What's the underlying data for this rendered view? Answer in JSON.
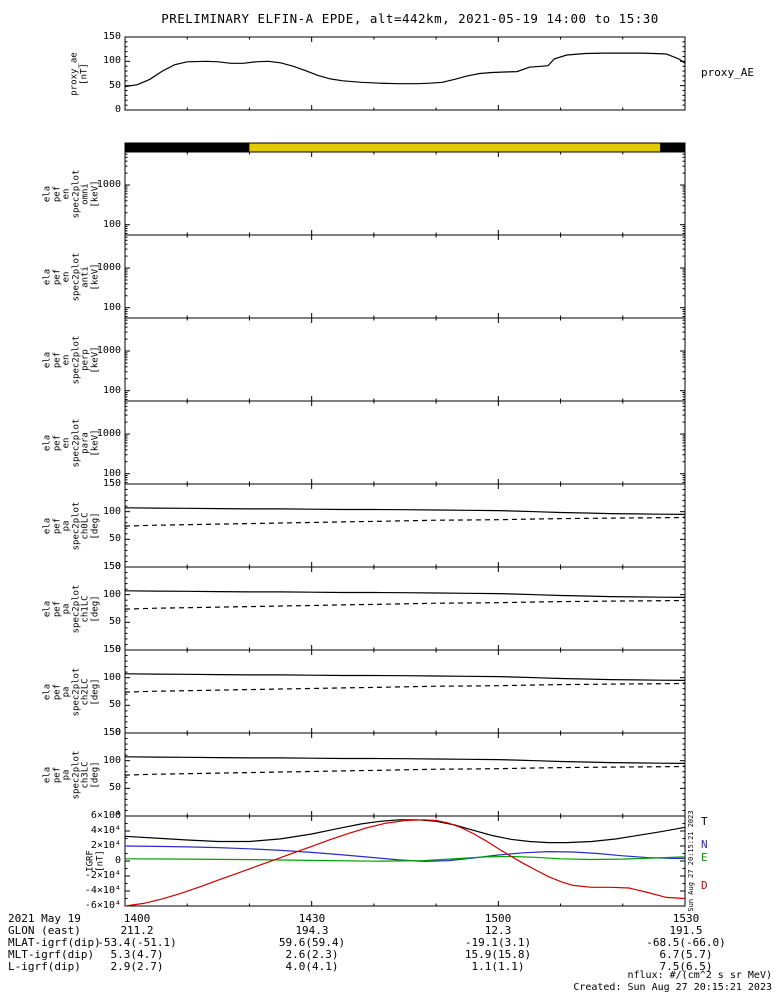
{
  "title": "PRELIMINARY ELFIN-A EPDE, alt=442km, 2021-05-19 14:00 to 15:30",
  "right_labels": {
    "proxy_ae_panel": "proxy_AE"
  },
  "igrf_trace_labels": [
    {
      "text": "T",
      "color": "#000000"
    },
    {
      "text": "N",
      "color": "#2b2bcc"
    },
    {
      "text": "E",
      "color": "#00a000"
    },
    {
      "text": "D",
      "color": "#cc0000"
    }
  ],
  "colors": {
    "line_black": "#000000",
    "bar_yellow": "#e3ca00",
    "igrf_T": "#000000",
    "igrf_N": "#2b2bcc",
    "igrf_E": "#00a000",
    "igrf_D": "#cc0000"
  },
  "time_axis": {
    "xlim_minutes": [
      0,
      90
    ],
    "major_ticks": [
      0,
      30,
      60,
      90
    ],
    "minor_step": 10,
    "tick_labels": [
      "1400",
      "1430",
      "1500",
      "1530"
    ]
  },
  "footer": {
    "rows": [
      {
        "label": "2021 May 19",
        "values": [
          "1400",
          "1430",
          "1500",
          "1530"
        ]
      },
      {
        "label": "GLON (east)",
        "values": [
          "211.2",
          "194.3",
          "12.3",
          "191.5"
        ]
      },
      {
        "label": "MLAT-igrf(dip)",
        "values": [
          "-53.4(-51.1)",
          "59.6(59.4)",
          "-19.1(3.1)",
          "-68.5(-66.0)"
        ]
      },
      {
        "label": "MLT-igrf(dip)",
        "values": [
          "5.3(4.7)",
          "2.6(2.3)",
          "15.9(15.8)",
          "6.7(5.7)"
        ]
      },
      {
        "label": "L-igrf(dip)",
        "values": [
          "2.9(2.7)",
          "4.0(4.1)",
          "1.1(1.1)",
          "7.5(6.5)"
        ]
      }
    ],
    "nflux": "nflux: #/(cm^2 s sr MeV)",
    "created": "Created: Sun Aug 27 20:15:21 2023",
    "side_timestamp": "Sun Aug 27 20:15:21 2023"
  },
  "chart_data": [
    {
      "id": "proxy_ae",
      "type": "line",
      "ylabel": "proxy_ae\n[nT]",
      "ylim": [
        0,
        150
      ],
      "yticks": [
        150,
        100,
        50,
        0
      ],
      "yminor": 10,
      "color": "#000000",
      "right_label": "proxy_AE",
      "x_minutes": [
        0,
        2,
        4,
        6,
        8,
        10,
        13,
        15,
        17,
        19,
        21,
        23,
        25,
        27,
        29,
        31,
        33,
        35,
        38,
        41,
        44,
        47,
        49,
        51,
        53,
        55,
        57,
        59,
        61,
        63,
        65,
        67,
        68,
        69,
        71,
        74,
        77,
        80,
        83,
        85,
        87,
        89,
        90
      ],
      "values": [
        48,
        52,
        63,
        80,
        93,
        99,
        100,
        99,
        96,
        96,
        99,
        100,
        97,
        90,
        81,
        71,
        64,
        60,
        57,
        55,
        54,
        54,
        55,
        57,
        63,
        70,
        75,
        77,
        78,
        79,
        88,
        90,
        91,
        105,
        113,
        116,
        117,
        117,
        117,
        116,
        115,
        105,
        96
      ]
    },
    {
      "id": "science-zone-bar",
      "type": "segment-bar",
      "segments": [
        {
          "t0": 0,
          "t1": 20,
          "color": "#000000"
        },
        {
          "t0": 20,
          "t1": 86,
          "color": "#e3ca00"
        },
        {
          "t0": 86,
          "t1": 90,
          "color": "#000000"
        }
      ]
    },
    {
      "id": "en_spec_omni",
      "type": "spectrogram",
      "empty": true,
      "ylabel": "ela\npef\nen\nspec2plot\nomni\n[keV]",
      "yscale": "log",
      "ylim": [
        55,
        6800
      ],
      "yticks": [
        1000,
        100
      ]
    },
    {
      "id": "en_spec_anti",
      "type": "spectrogram",
      "empty": true,
      "ylabel": "ela\npef\nen\nspec2plot\nanti\n[keV]",
      "yscale": "log",
      "ylim": [
        55,
        6800
      ],
      "yticks": [
        1000,
        100
      ]
    },
    {
      "id": "en_spec_perp",
      "type": "spectrogram",
      "empty": true,
      "ylabel": "ela\npef\nen\nspec2plot\nperp\n[keV]",
      "yscale": "log",
      "ylim": [
        55,
        6800
      ],
      "yticks": [
        1000,
        100
      ]
    },
    {
      "id": "en_spec_para",
      "type": "spectrogram",
      "empty": true,
      "ylabel": "ela\npef\nen\nspec2plot\npara\n[keV]",
      "yscale": "log",
      "ylim": [
        55,
        6800
      ],
      "yticks": [
        1000,
        100
      ]
    },
    {
      "id": "pa_spec_ch0",
      "type": "line",
      "ylabel": "ela\npef\npa\nspec2plot\nch0LC\n[deg]",
      "ylim": [
        0,
        150
      ],
      "yticks": [
        150,
        100,
        50,
        0
      ],
      "yminor": 10,
      "series": [
        {
          "name": "anti-loss-cone",
          "style": "solid",
          "color": "#000000",
          "x": [
            0,
            5,
            10,
            15,
            20,
            25,
            30,
            35,
            40,
            45,
            50,
            55,
            60,
            63,
            66,
            70,
            74,
            78,
            82,
            86,
            90
          ],
          "values": [
            107,
            106.5,
            106,
            105.5,
            105,
            105,
            104.5,
            104,
            104,
            103.5,
            103,
            102.5,
            102,
            101,
            100,
            98.5,
            97.5,
            96.5,
            96,
            95.5,
            95
          ]
        },
        {
          "name": "loss-cone",
          "style": "dashed",
          "color": "#000000",
          "x": [
            0,
            5,
            10,
            15,
            20,
            25,
            30,
            35,
            40,
            45,
            50,
            55,
            60,
            65,
            70,
            75,
            80,
            85,
            90
          ],
          "values": [
            74,
            75.5,
            76.5,
            77.5,
            78.5,
            79.5,
            80.5,
            81.5,
            82.5,
            83.5,
            84.5,
            85,
            85.5,
            86.5,
            87.5,
            88,
            88.5,
            89,
            89.5
          ]
        }
      ]
    },
    {
      "id": "pa_spec_ch1",
      "type": "line",
      "ylabel": "ela\npef\npa\nspec2plot\nch1LC\n[deg]",
      "ylim": [
        0,
        150
      ],
      "yticks": [
        150,
        100,
        50,
        0
      ],
      "yminor": 10,
      "series": [
        {
          "name": "anti-loss-cone",
          "style": "solid",
          "color": "#000000",
          "x": [
            0,
            5,
            10,
            15,
            20,
            25,
            30,
            35,
            40,
            45,
            50,
            55,
            60,
            63,
            66,
            70,
            74,
            78,
            82,
            86,
            90
          ],
          "values": [
            107,
            106.5,
            106,
            105.5,
            105,
            105,
            104.5,
            104,
            104,
            103.5,
            103,
            102.5,
            102,
            101,
            100,
            98.5,
            97.5,
            96.5,
            96,
            95.5,
            95
          ]
        },
        {
          "name": "loss-cone",
          "style": "dashed",
          "color": "#000000",
          "x": [
            0,
            5,
            10,
            15,
            20,
            25,
            30,
            35,
            40,
            45,
            50,
            55,
            60,
            65,
            70,
            75,
            80,
            85,
            90
          ],
          "values": [
            74,
            75.5,
            76.5,
            77.5,
            78.5,
            79.5,
            80.5,
            81.5,
            82.5,
            83.5,
            84.5,
            85,
            85.5,
            86.5,
            87.5,
            88,
            88.5,
            89,
            89.5
          ]
        }
      ]
    },
    {
      "id": "pa_spec_ch2",
      "type": "line",
      "ylabel": "ela\npef\npa\nspec2plot\nch2LC\n[deg]",
      "ylim": [
        0,
        150
      ],
      "yticks": [
        150,
        100,
        50,
        0
      ],
      "yminor": 10,
      "series": [
        {
          "name": "anti-loss-cone",
          "style": "solid",
          "color": "#000000",
          "x": [
            0,
            5,
            10,
            15,
            20,
            25,
            30,
            35,
            40,
            45,
            50,
            55,
            60,
            63,
            66,
            70,
            74,
            78,
            82,
            86,
            90
          ],
          "values": [
            107,
            106.5,
            106,
            105.5,
            105,
            105,
            104.5,
            104,
            104,
            103.5,
            103,
            102.5,
            102,
            101,
            100,
            98.5,
            97.5,
            96.5,
            96,
            95.5,
            95
          ]
        },
        {
          "name": "loss-cone",
          "style": "dashed",
          "color": "#000000",
          "x": [
            0,
            5,
            10,
            15,
            20,
            25,
            30,
            35,
            40,
            45,
            50,
            55,
            60,
            65,
            70,
            75,
            80,
            85,
            90
          ],
          "values": [
            74,
            75.5,
            76.5,
            77.5,
            78.5,
            79.5,
            80.5,
            81.5,
            82.5,
            83.5,
            84.5,
            85,
            85.5,
            86.5,
            87.5,
            88,
            88.5,
            89,
            89.5
          ]
        }
      ]
    },
    {
      "id": "pa_spec_ch3",
      "type": "line",
      "ylabel": "ela\npef\npa\nspec2plot\nch3LC\n[deg]",
      "ylim": [
        0,
        150
      ],
      "yticks": [
        150,
        100,
        50,
        0
      ],
      "yminor": 10,
      "series": [
        {
          "name": "anti-loss-cone",
          "style": "solid",
          "color": "#000000",
          "x": [
            0,
            5,
            10,
            15,
            20,
            25,
            30,
            35,
            40,
            45,
            50,
            55,
            60,
            63,
            66,
            70,
            74,
            78,
            82,
            86,
            90
          ],
          "values": [
            107,
            106.5,
            106,
            105.5,
            105,
            105,
            104.5,
            104,
            104,
            103.5,
            103,
            102.5,
            102,
            101,
            100,
            98.5,
            97.5,
            96.5,
            96,
            95.5,
            95
          ]
        },
        {
          "name": "loss-cone",
          "style": "dashed",
          "color": "#000000",
          "x": [
            0,
            5,
            10,
            15,
            20,
            25,
            30,
            35,
            40,
            45,
            50,
            55,
            60,
            65,
            70,
            75,
            80,
            85,
            90
          ],
          "values": [
            74,
            75.5,
            76.5,
            77.5,
            78.5,
            79.5,
            80.5,
            81.5,
            82.5,
            83.5,
            84.5,
            85,
            85.5,
            86.5,
            87.5,
            88,
            88.5,
            89,
            89.5
          ]
        }
      ]
    },
    {
      "id": "igrf",
      "type": "line",
      "ylabel": "IGRF\n[nT]",
      "ylim": [
        -60000,
        60000
      ],
      "yticks": [
        60000,
        40000,
        20000,
        0,
        -20000,
        -40000,
        -60000
      ],
      "ytick_labels": [
        "6×10⁴",
        "4×10⁴",
        "2×10⁴",
        "0",
        "-2×10⁴",
        "-4×10⁴",
        "-6×10⁴"
      ],
      "yminor": 10000,
      "series": [
        {
          "name": "T",
          "style": "solid",
          "color": "#000000",
          "x": [
            0,
            5,
            10,
            15,
            20,
            25,
            30,
            34,
            38,
            41,
            44,
            47,
            50,
            53,
            56,
            59,
            62,
            65,
            68,
            71,
            75,
            79,
            83,
            86,
            90
          ],
          "values": [
            33000,
            30500,
            28000,
            26000,
            26000,
            29500,
            36000,
            43000,
            49500,
            53000,
            55000,
            55000,
            53000,
            48000,
            41000,
            34000,
            29000,
            26000,
            24500,
            24500,
            26000,
            29500,
            35000,
            39000,
            45000
          ]
        },
        {
          "name": "N",
          "style": "solid",
          "color": "#2b2bcc",
          "x": [
            0,
            5,
            10,
            15,
            20,
            25,
            30,
            35,
            40,
            44,
            48,
            52,
            56,
            60,
            64,
            68,
            72,
            76,
            80,
            84,
            88,
            90
          ],
          "values": [
            20000,
            19500,
            18800,
            17800,
            16300,
            14200,
            11500,
            8200,
            4500,
            1500,
            -500,
            500,
            4000,
            8000,
            11000,
            12500,
            12000,
            10000,
            7000,
            4500,
            3500,
            3500
          ]
        },
        {
          "name": "E",
          "style": "solid",
          "color": "#00a000",
          "x": [
            0,
            10,
            20,
            30,
            40,
            48,
            54,
            58,
            62,
            66,
            70,
            75,
            80,
            85,
            90
          ],
          "values": [
            3000,
            2500,
            1800,
            800,
            -300,
            500,
            3500,
            5500,
            6000,
            5000,
            3000,
            2000,
            2500,
            4000,
            5500
          ]
        },
        {
          "name": "D",
          "style": "solid",
          "color": "#cc0000",
          "x": [
            0,
            3,
            6,
            9,
            12,
            15,
            18,
            21,
            24,
            27,
            30,
            33,
            36,
            39,
            42,
            45,
            48,
            50,
            52,
            54,
            56,
            58,
            60,
            62,
            64,
            66,
            68,
            70,
            72,
            75,
            78,
            81,
            84,
            87,
            90
          ],
          "values": [
            -60000,
            -56500,
            -50500,
            -43000,
            -34500,
            -25500,
            -16500,
            -7500,
            1500,
            10500,
            19500,
            28500,
            37000,
            44500,
            50500,
            54000,
            55000,
            54000,
            50500,
            44500,
            36500,
            27000,
            16500,
            6500,
            -3000,
            -12000,
            -20500,
            -27500,
            -32500,
            -35000,
            -35000,
            -36000,
            -42000,
            -48500,
            -50000
          ]
        }
      ]
    }
  ]
}
